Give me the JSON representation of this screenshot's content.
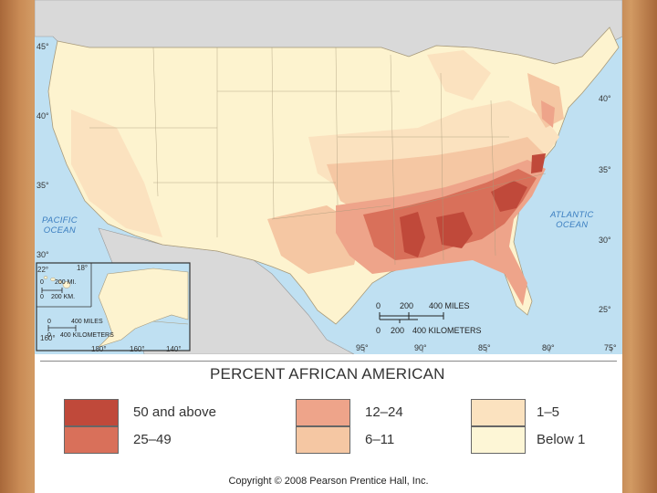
{
  "map": {
    "oceans": [
      {
        "name": "PACIFIC\nOCEAN"
      },
      {
        "name": "ATLANTIC\nOCEAN"
      }
    ],
    "latitude_labels": [
      "45°",
      "40°",
      "35°",
      "30°",
      "40°",
      "35°",
      "30°",
      "25°",
      "22°",
      "18°"
    ],
    "longitude_labels": [
      "95°",
      "90°",
      "85°",
      "80°",
      "75°",
      "160°",
      "180°",
      "160°",
      "140°"
    ],
    "main_scale": {
      "miles_ticks": [
        "0",
        "200",
        "400 MILES"
      ],
      "km_ticks": [
        "0",
        "200",
        "400 KILOMETERS"
      ]
    },
    "hawaii_scale": {
      "miles_ticks": [
        "0",
        "200 MI."
      ],
      "km_ticks": [
        "0",
        "200 KM."
      ]
    },
    "alaska_scale": {
      "miles_ticks": [
        "0",
        "400 MILES"
      ],
      "km_ticks": [
        "0",
        "400 KILOMETERS"
      ]
    },
    "colors": {
      "cat_50_plus": "#c0493a",
      "cat_25_49": "#d9705a",
      "cat_12_24": "#eea48a",
      "cat_6_11": "#f5c7a3",
      "cat_1_5": "#fbe2bf",
      "cat_below_1": "#fdf6d6",
      "water": "#bfe0f2",
      "foreign_land": "#d9d9d9"
    }
  },
  "legend": {
    "title": "PERCENT AFRICAN AMERICAN",
    "categories": [
      {
        "label": "50 and above",
        "color": "#c0493a"
      },
      {
        "label": "25–49",
        "color": "#d9705a"
      },
      {
        "label": "12–24",
        "color": "#eea48a"
      },
      {
        "label": "6–11",
        "color": "#f5c7a3"
      },
      {
        "label": "1–5",
        "color": "#fbe2bf"
      },
      {
        "label": "Below 1",
        "color": "#fdf6d6"
      }
    ]
  },
  "copyright": "Copyright © 2008 Pearson Prentice Hall, Inc."
}
